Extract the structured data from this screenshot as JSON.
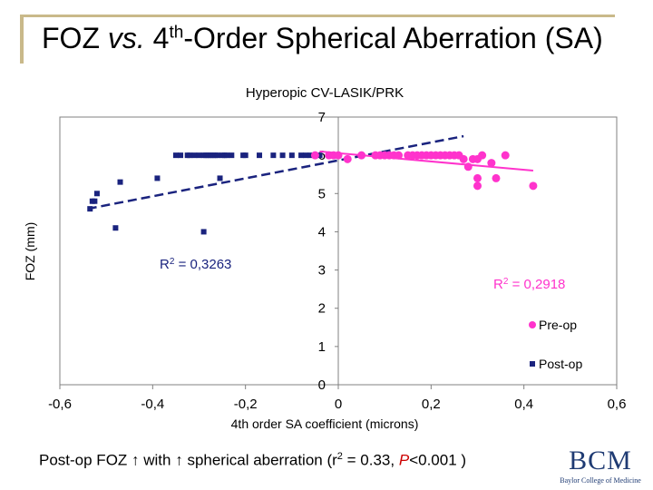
{
  "slide": {
    "title_prefix": "FOZ ",
    "title_vs": "vs.",
    "title_mid": " 4",
    "title_sup": "th",
    "title_suffix": "-Order Spherical Aberration (SA)",
    "footer_part1": "Post-op FOZ ",
    "footer_arrow1": "↑",
    "footer_part2": " with ",
    "footer_arrow2": "↑",
    "footer_part3": " spherical aberration (r",
    "footer_sup": "2",
    "footer_part4": " = 0.33, ",
    "footer_p": "P",
    "footer_part5": "<0.001 )",
    "logo_text": "BCM",
    "logo_subtext": "Baylor College of Medicine"
  },
  "colors": {
    "postop": "#1a237e",
    "preop": "#ff33cc",
    "r2_postop": "#1a237e",
    "r2_preop": "#ff33cc",
    "accent_bar": "#c9b98a"
  },
  "chart_data": {
    "type": "scatter",
    "title": "Hyperopic CV-LASIK/PRK",
    "xlabel": "4th order SA coefficient (microns)",
    "ylabel": "FOZ (mm)",
    "xlim": [
      -0.6,
      0.6
    ],
    "ylim": [
      0,
      7
    ],
    "x_ticks": [
      "-0,6",
      "-0,4",
      "-0,2",
      "0",
      "0,2",
      "0,4",
      "0,6"
    ],
    "y_ticks": [
      "0",
      "1",
      "2",
      "3",
      "4",
      "5",
      "6",
      "7"
    ],
    "legend": [
      "Pre-op",
      "Post-op"
    ],
    "legend_position": "right",
    "grid": false,
    "series": [
      {
        "name": "Post-op",
        "marker": "square",
        "points": [
          [
            -0.535,
            4.6
          ],
          [
            -0.53,
            4.8
          ],
          [
            -0.525,
            4.8
          ],
          [
            -0.52,
            5.0
          ],
          [
            -0.48,
            4.1
          ],
          [
            -0.47,
            5.3
          ],
          [
            -0.39,
            5.4
          ],
          [
            -0.35,
            6.0
          ],
          [
            -0.34,
            6.0
          ],
          [
            -0.325,
            6.0
          ],
          [
            -0.32,
            6.0
          ],
          [
            -0.31,
            6.0
          ],
          [
            -0.3,
            6.0
          ],
          [
            -0.29,
            4.0
          ],
          [
            -0.29,
            6.0
          ],
          [
            -0.285,
            6.0
          ],
          [
            -0.28,
            6.0
          ],
          [
            -0.275,
            6.0
          ],
          [
            -0.27,
            6.0
          ],
          [
            -0.265,
            6.0
          ],
          [
            -0.26,
            6.0
          ],
          [
            -0.255,
            5.4
          ],
          [
            -0.25,
            6.0
          ],
          [
            -0.245,
            6.0
          ],
          [
            -0.24,
            6.0
          ],
          [
            -0.23,
            6.0
          ],
          [
            -0.205,
            6.0
          ],
          [
            -0.2,
            6.0
          ],
          [
            -0.17,
            6.0
          ],
          [
            -0.14,
            6.0
          ],
          [
            -0.12,
            6.0
          ],
          [
            -0.1,
            6.0
          ],
          [
            -0.08,
            6.0
          ],
          [
            -0.07,
            6.0
          ],
          [
            -0.06,
            6.0
          ],
          [
            -0.04,
            6.0
          ]
        ],
        "trend": [
          [
            -0.54,
            4.6
          ],
          [
            0.27,
            6.5
          ]
        ],
        "r2_label": "R2 = 0,3263"
      },
      {
        "name": "Pre-op",
        "marker": "circle",
        "points": [
          [
            -0.05,
            6.0
          ],
          [
            -0.02,
            6.0
          ],
          [
            -0.01,
            6.0
          ],
          [
            0.0,
            6.0
          ],
          [
            0.02,
            5.9
          ],
          [
            0.05,
            6.0
          ],
          [
            0.08,
            6.0
          ],
          [
            0.09,
            6.0
          ],
          [
            0.1,
            6.0
          ],
          [
            0.11,
            6.0
          ],
          [
            0.12,
            6.0
          ],
          [
            0.13,
            6.0
          ],
          [
            0.15,
            6.0
          ],
          [
            0.16,
            6.0
          ],
          [
            0.17,
            6.0
          ],
          [
            0.18,
            6.0
          ],
          [
            0.19,
            6.0
          ],
          [
            0.2,
            6.0
          ],
          [
            0.21,
            6.0
          ],
          [
            0.22,
            6.0
          ],
          [
            0.23,
            6.0
          ],
          [
            0.24,
            6.0
          ],
          [
            0.25,
            6.0
          ],
          [
            0.26,
            6.0
          ],
          [
            0.27,
            5.9
          ],
          [
            0.28,
            5.7
          ],
          [
            0.29,
            5.9
          ],
          [
            0.3,
            5.9
          ],
          [
            0.3,
            5.4
          ],
          [
            0.3,
            5.2
          ],
          [
            0.31,
            6.0
          ],
          [
            0.33,
            5.8
          ],
          [
            0.34,
            5.4
          ],
          [
            0.36,
            6.0
          ],
          [
            0.42,
            5.2
          ]
        ],
        "trend": [
          [
            -0.04,
            6.1
          ],
          [
            0.42,
            5.6
          ]
        ],
        "r2_label": "R2 = 0,2918"
      }
    ]
  }
}
